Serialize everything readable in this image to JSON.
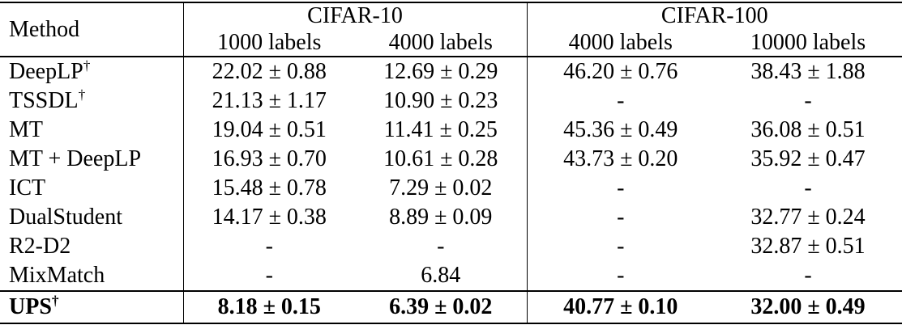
{
  "table": {
    "method_header": "Method",
    "groups": [
      {
        "label": "CIFAR-10",
        "subcolumns": [
          "1000 labels",
          "4000 labels"
        ]
      },
      {
        "label": "CIFAR-100",
        "subcolumns": [
          "4000 labels",
          "10000 labels"
        ]
      }
    ],
    "rows": [
      {
        "method": "DeepLP",
        "sup": "†",
        "bold": false,
        "values": [
          "22.02 ± 0.88",
          "12.69 ± 0.29",
          "46.20 ± 0.76",
          "38.43 ± 1.88"
        ]
      },
      {
        "method": "TSSDL",
        "sup": "†",
        "bold": false,
        "values": [
          "21.13 ± 1.17",
          "10.90 ± 0.23",
          "-",
          "-"
        ]
      },
      {
        "method": "MT",
        "sup": "",
        "bold": false,
        "values": [
          "19.04 ± 0.51",
          "11.41 ± 0.25",
          "45.36 ± 0.49",
          "36.08 ± 0.51"
        ]
      },
      {
        "method": "MT + DeepLP",
        "sup": "",
        "bold": false,
        "values": [
          "16.93 ± 0.70",
          "10.61 ± 0.28",
          "43.73 ±  0.20",
          "35.92 ± 0.47"
        ]
      },
      {
        "method": "ICT",
        "sup": "",
        "bold": false,
        "values": [
          "15.48 ± 0.78",
          "7.29 ± 0.02",
          "-",
          "-"
        ]
      },
      {
        "method": "DualStudent",
        "sup": "",
        "bold": false,
        "values": [
          "14.17 ± 0.38",
          "8.89 ± 0.09",
          "-",
          "32.77 ± 0.24"
        ]
      },
      {
        "method": "R2-D2",
        "sup": "",
        "bold": false,
        "values": [
          "-",
          "-",
          "-",
          "32.87 ± 0.51"
        ]
      },
      {
        "method": "MixMatch",
        "sup": "",
        "bold": false,
        "values": [
          "-",
          "6.84",
          "-",
          "-"
        ]
      },
      {
        "method": "UPS",
        "sup": "†",
        "bold": true,
        "values": [
          "8.18 ± 0.15",
          "6.39 ± 0.02",
          "40.77 ± 0.10",
          "32.00 ± 0.49"
        ]
      }
    ]
  },
  "colors": {
    "text": "#000000",
    "background": "#ffffff",
    "rule": "#000000"
  }
}
